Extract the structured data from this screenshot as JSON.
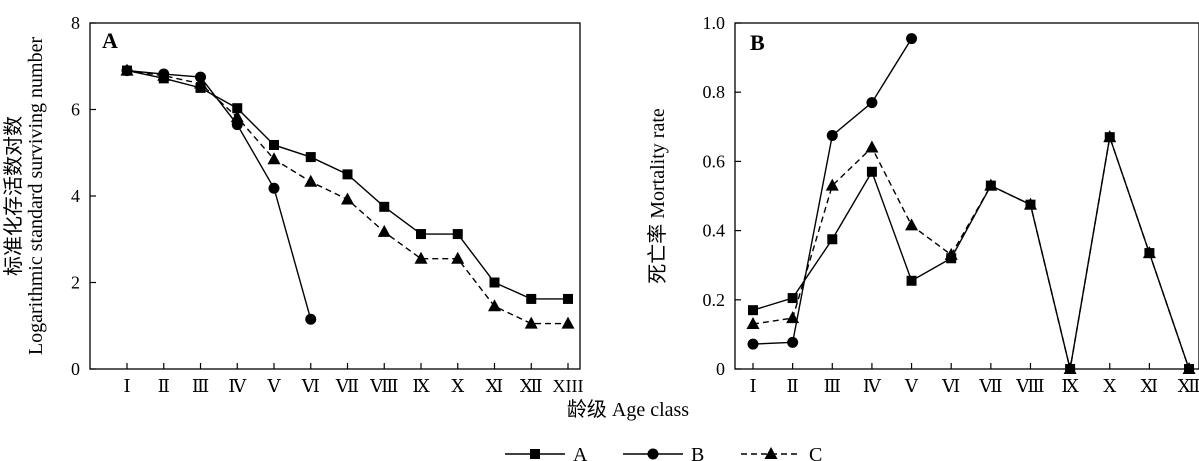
{
  "figure": {
    "shared_xlabel": "龄级 Age class",
    "legend": [
      {
        "label": "A",
        "marker": "square",
        "dash": "solid"
      },
      {
        "label": "B",
        "marker": "circle",
        "dash": "solid"
      },
      {
        "label": "C",
        "marker": "triangle",
        "dash": "dashed"
      }
    ]
  },
  "chart_data": [
    {
      "type": "line",
      "panel_label": "A",
      "ylabel_zh": "标准化存活数对数",
      "ylabel_en": "Logarithmic standard surviving number",
      "categories": [
        "Ⅰ",
        "Ⅱ",
        "Ⅲ",
        "Ⅳ",
        "Ⅴ",
        "Ⅵ",
        "Ⅶ",
        "Ⅷ",
        "Ⅸ",
        "Ⅹ",
        "Ⅺ",
        "Ⅻ",
        "XIII"
      ],
      "ylim": [
        0,
        8
      ],
      "yticks": [
        "0",
        "2",
        "4",
        "6",
        "8"
      ],
      "grid": false,
      "series": [
        {
          "name": "A",
          "marker": "square",
          "dash": "solid",
          "values": [
            6.9,
            6.72,
            6.5,
            6.03,
            5.18,
            4.9,
            4.5,
            3.75,
            3.12,
            3.12,
            2.0,
            1.62,
            1.62
          ]
        },
        {
          "name": "B",
          "marker": "circle",
          "dash": "solid",
          "values": [
            6.9,
            6.82,
            6.75,
            5.65,
            4.18,
            1.15,
            null,
            null,
            null,
            null,
            null,
            null,
            null
          ]
        },
        {
          "name": "C",
          "marker": "triangle",
          "dash": "dashed",
          "values": [
            6.9,
            6.78,
            6.6,
            5.82,
            4.85,
            4.33,
            3.92,
            3.17,
            2.55,
            2.55,
            1.45,
            1.05,
            1.05
          ]
        }
      ]
    },
    {
      "type": "line",
      "panel_label": "B",
      "ylabel_zh": "死亡率",
      "ylabel_en": "Mortality rate",
      "categories": [
        "Ⅰ",
        "Ⅱ",
        "Ⅲ",
        "Ⅳ",
        "Ⅴ",
        "Ⅵ",
        "Ⅶ",
        "Ⅷ",
        "Ⅸ",
        "Ⅹ",
        "Ⅺ",
        "Ⅻ"
      ],
      "ylim": [
        0,
        1.0
      ],
      "yticks": [
        "0",
        "0.2",
        "0.4",
        "0.6",
        "0.8",
        "1.0"
      ],
      "grid": false,
      "series": [
        {
          "name": "A",
          "marker": "square",
          "dash": "solid",
          "values": [
            0.17,
            0.205,
            0.375,
            0.57,
            0.255,
            0.32,
            0.53,
            0.475,
            0.0,
            0.67,
            0.335,
            0.0
          ]
        },
        {
          "name": "B",
          "marker": "circle",
          "dash": "solid",
          "values": [
            0.072,
            0.077,
            0.675,
            0.77,
            0.955,
            null,
            null,
            null,
            null,
            null,
            null,
            null
          ]
        },
        {
          "name": "C",
          "marker": "triangle",
          "dash": "dashed",
          "values": [
            0.13,
            0.147,
            0.53,
            0.64,
            0.415,
            0.33,
            0.53,
            0.475,
            0.0,
            0.67,
            0.335,
            0.0
          ]
        }
      ]
    }
  ]
}
